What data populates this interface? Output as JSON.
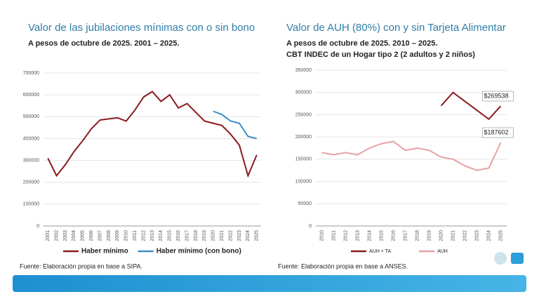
{
  "chart_data": [
    {
      "type": "line",
      "title": "Valor de las jubilaciones mínimas con o sin bono",
      "subtitle": [
        "A pesos de octubre de 2025. 2001 – 2025."
      ],
      "categories": [
        "2001",
        "2002",
        "2003",
        "2004",
        "2005",
        "2006",
        "2007",
        "2008",
        "2009",
        "2010",
        "2011",
        "2012",
        "2013",
        "2014",
        "2015",
        "2016",
        "2017",
        "2018",
        "2019",
        "2020",
        "2021",
        "2022",
        "2023",
        "2024",
        "2025"
      ],
      "series": [
        {
          "name": "Haber mínimo",
          "color": "#8b1a1f",
          "values": [
            310000,
            230000,
            280000,
            340000,
            390000,
            445000,
            485000,
            490000,
            495000,
            480000,
            530000,
            590000,
            615000,
            570000,
            600000,
            540000,
            560000,
            520000,
            480000,
            470000,
            460000,
            420000,
            370000,
            230000,
            325000
          ]
        },
        {
          "name": "Haber mínimo (con bono)",
          "color": "#3a8fc4",
          "values": [
            null,
            null,
            null,
            null,
            null,
            null,
            null,
            null,
            null,
            null,
            null,
            null,
            null,
            null,
            null,
            null,
            null,
            null,
            null,
            525000,
            510000,
            480000,
            470000,
            410000,
            400000
          ]
        }
      ],
      "ylim": [
        0,
        700000
      ],
      "yticks": [
        0,
        100000,
        200000,
        300000,
        400000,
        500000,
        600000,
        700000
      ],
      "grid": true,
      "source": "Fuente: Elaboración propia en base a SIPA."
    },
    {
      "type": "line",
      "title": "Valor de AUH (80%) con y sin Tarjeta Alimentar",
      "subtitle": [
        "A pesos de octubre de 2025. 2010 – 2025.",
        "CBT INDEC de un Hogar tipo 2 (2 adultos y 2 niños)"
      ],
      "categories": [
        "2010",
        "2011",
        "2012",
        "2013",
        "2014",
        "2015",
        "2016",
        "2017",
        "2018",
        "2019",
        "2020",
        "2021",
        "2022",
        "2023",
        "2024",
        "2025"
      ],
      "series": [
        {
          "name": "AUH + TA",
          "color": "#8b1a1f",
          "values": [
            null,
            null,
            null,
            null,
            null,
            null,
            null,
            null,
            null,
            null,
            270000,
            300000,
            280000,
            260000,
            240000,
            269538
          ],
          "value_labels": [
            null,
            null,
            null,
            null,
            null,
            null,
            null,
            null,
            null,
            null,
            null,
            null,
            null,
            null,
            null,
            "$269538"
          ]
        },
        {
          "name": "AUH",
          "color": "#e8a0a4",
          "values": [
            165000,
            160000,
            165000,
            160000,
            175000,
            185000,
            190000,
            170000,
            175000,
            170000,
            155000,
            150000,
            135000,
            125000,
            130000,
            187602
          ],
          "value_labels": [
            null,
            null,
            null,
            null,
            null,
            null,
            null,
            null,
            null,
            null,
            null,
            null,
            null,
            null,
            null,
            "$187602"
          ]
        }
      ],
      "ylim": [
        0,
        350000
      ],
      "yticks": [
        0,
        50000,
        100000,
        150000,
        200000,
        250000,
        300000,
        350000
      ],
      "grid": true,
      "source": "Fuente: Elaboración propia en base a ANSES."
    }
  ]
}
